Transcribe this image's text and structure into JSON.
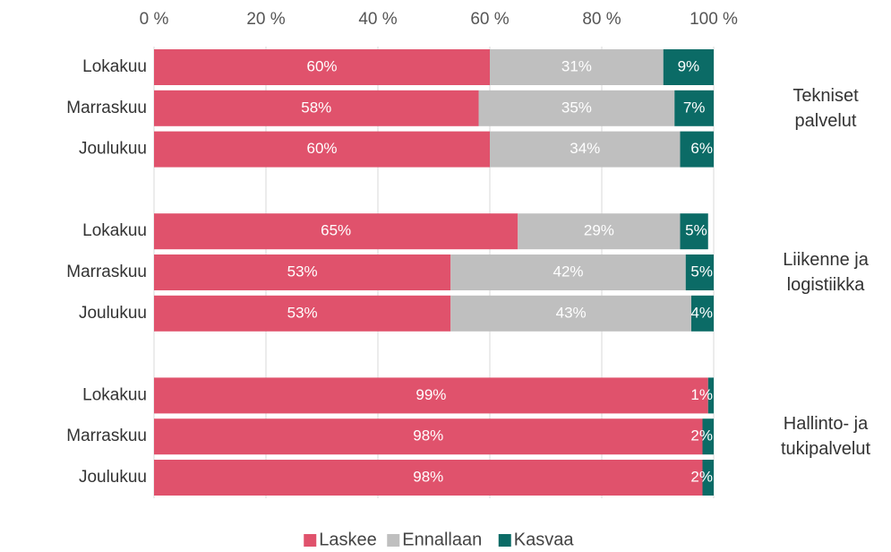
{
  "chart_data": {
    "type": "bar",
    "orientation": "horizontal",
    "stacked": true,
    "categories": [
      "Lokakuu",
      "Marraskuu",
      "Joulukuu",
      "Lokakuu",
      "Marraskuu",
      "Joulukuu",
      "Lokakuu",
      "Marraskuu",
      "Joulukuu"
    ],
    "groups": [
      "Tekniset\npalvelut",
      "Liikenne ja\nlogistiikka",
      "Hallinto- ja\ntukipalvelut"
    ],
    "series": [
      {
        "name": "Laskee",
        "color": "#e0526c",
        "values": [
          60,
          58,
          60,
          65,
          53,
          53,
          99,
          98,
          98
        ],
        "value_labels": [
          "60%",
          "58%",
          "60%",
          "65%",
          "53%",
          "53%",
          "99%",
          "98%",
          "98%"
        ]
      },
      {
        "name": "Ennallaan",
        "color": "#bfbfbf",
        "values": [
          31,
          35,
          34,
          29,
          42,
          43,
          null,
          null,
          null
        ],
        "value_labels": [
          "31%",
          "35%",
          "34%",
          "29%",
          "42%",
          "43%",
          null,
          null,
          null
        ]
      },
      {
        "name": "Kasvaa",
        "color": "#0b6b66",
        "values": [
          9,
          7,
          6,
          5,
          5,
          4,
          1,
          2,
          2
        ],
        "value_labels": [
          "9%",
          "7%",
          "6%",
          "5%",
          "5%",
          "4%",
          "1%",
          "2%",
          "2%"
        ]
      }
    ],
    "xlim": [
      0,
      100
    ],
    "xticks": [
      {
        "value": 0,
        "label": "0 %"
      },
      {
        "value": 20,
        "label": "20 %"
      },
      {
        "value": 40,
        "label": "40 %"
      },
      {
        "value": 60,
        "label": "60 %"
      },
      {
        "value": 80,
        "label": "80 %"
      },
      {
        "value": 100,
        "label": "100 %"
      }
    ],
    "grid": true,
    "legend": "bottom"
  }
}
